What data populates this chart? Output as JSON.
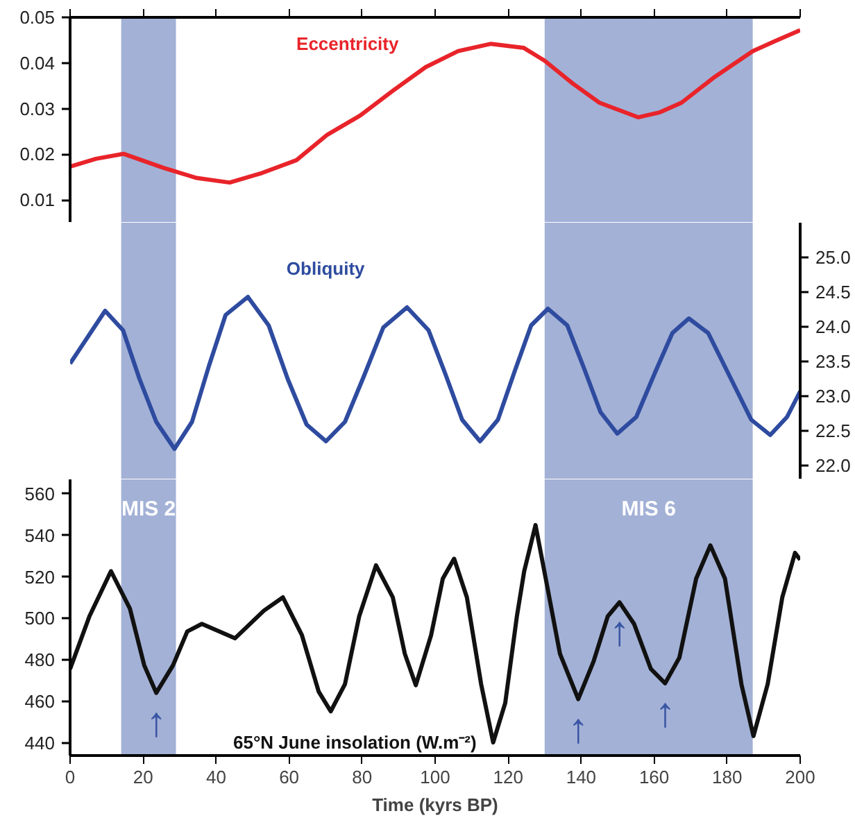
{
  "chart_data": [
    {
      "type": "line",
      "xlim": [
        0,
        200
      ],
      "xticks": [
        0,
        20,
        40,
        60,
        80,
        100,
        120,
        140,
        160,
        180,
        200
      ],
      "ylim": [
        0.005,
        0.05
      ],
      "yticks": [
        0.01,
        0.02,
        0.03,
        0.04,
        0.05
      ],
      "tick_labels": "y",
      "grid": false,
      "series": [
        {
          "name": "Eccentricity",
          "color": "#e8242a",
          "x": [
            0,
            7.1,
            14.6,
            25.7,
            34.7,
            43.7,
            52.6,
            62,
            70.5,
            79.5,
            88.4,
            97.4,
            106.3,
            115.3,
            124.3,
            130,
            137.7,
            145,
            155.6,
            161.6,
            167.5,
            176.5,
            187,
            192.9,
            200
          ],
          "values": [
            0.0173,
            0.019,
            0.0201,
            0.017,
            0.0148,
            0.0138,
            0.0159,
            0.0187,
            0.0243,
            0.0285,
            0.0339,
            0.0391,
            0.0426,
            0.0442,
            0.0433,
            0.0405,
            0.0355,
            0.0313,
            0.0281,
            0.0292,
            0.0313,
            0.0369,
            0.0426,
            0.0447,
            0.0472
          ]
        }
      ],
      "bands": [
        {
          "axis": "x",
          "from": 14,
          "to": 29,
          "color": "#a3b1d6"
        },
        {
          "axis": "x",
          "from": 130,
          "to": 187,
          "color": "#a3b1d6"
        }
      ]
    },
    {
      "type": "line",
      "xlim": [
        0,
        200
      ],
      "ylim": [
        21.8,
        25.5
      ],
      "yticks": [
        {
          "value": 22,
          "label": "22.0"
        },
        22.5,
        {
          "value": 23,
          "label": "23.0"
        },
        23.5,
        {
          "value": 24,
          "label": "24.0"
        },
        24.5,
        {
          "value": 25,
          "label": "25.0"
        }
      ],
      "tick_labels": "y",
      "grid": false,
      "series": [
        {
          "name": "Obliquity",
          "color": "#2e4b9f",
          "x": [
            0,
            9.6,
            14.5,
            19,
            23.6,
            28.6,
            33.4,
            38,
            42.6,
            48.7,
            54.4,
            59.6,
            64.8,
            70.1,
            75.3,
            80.5,
            85.8,
            92.3,
            98.2,
            102.8,
            107.4,
            112.3,
            117.2,
            121.8,
            126.3,
            130.9,
            136.2,
            140.8,
            145.3,
            149.9,
            155.1,
            160.4,
            165,
            169.5,
            174.8,
            180,
            186.6,
            191.8,
            196.4,
            200
          ],
          "values": [
            23.47,
            24.23,
            23.95,
            23.25,
            22.63,
            22.24,
            22.63,
            23.43,
            24.17,
            24.43,
            24.02,
            23.25,
            22.59,
            22.35,
            22.63,
            23.29,
            23.99,
            24.28,
            23.95,
            23.32,
            22.66,
            22.35,
            22.66,
            23.36,
            24.02,
            24.26,
            24.02,
            23.4,
            22.77,
            22.46,
            22.7,
            23.36,
            23.91,
            24.12,
            23.91,
            23.36,
            22.66,
            22.44,
            22.7,
            23.07
          ]
        }
      ],
      "bands": [
        {
          "axis": "x",
          "from": 14,
          "to": 29,
          "color": "#a3b1d6"
        },
        {
          "axis": "x",
          "from": 130,
          "to": 187,
          "color": "#a3b1d6"
        }
      ]
    },
    {
      "type": "line",
      "xlabel": "Time (kyrs BP)",
      "xlim": [
        0,
        200
      ],
      "xticks": [
        0,
        20,
        40,
        60,
        80,
        100,
        120,
        140,
        160,
        180,
        200
      ],
      "ylim": [
        434,
        567
      ],
      "yticks": [
        440,
        460,
        480,
        500,
        520,
        540,
        560
      ],
      "grid": false,
      "series": [
        {
          "name": "65°N June insolation (W.m⁻²)",
          "color": "#111111",
          "x": [
            0,
            5.3,
            11.2,
            16.4,
            20.3,
            23.6,
            28.2,
            32.1,
            36.1,
            45.2,
            53.1,
            58.3,
            63.5,
            68.1,
            71.4,
            75.3,
            79.2,
            83.8,
            88.4,
            91.7,
            94.7,
            98.9,
            102.1,
            105.2,
            108.7,
            112.6,
            115.9,
            119.2,
            122.4,
            124.4,
            127.5,
            130.3,
            134.2,
            139.2,
            143.4,
            147.3,
            150.5,
            154.5,
            159.1,
            163,
            166.9,
            171.5,
            175.4,
            179.4,
            183.9,
            187.2,
            191.1,
            195.1,
            198.6,
            200
          ],
          "values": [
            475.7,
            501.1,
            522.8,
            504.7,
            477.5,
            464.2,
            477.5,
            493.8,
            497.4,
            490.5,
            503.8,
            510.2,
            492,
            464.8,
            455.3,
            468.4,
            501.1,
            525.6,
            510.2,
            483,
            467.9,
            492,
            519.2,
            528.8,
            510.2,
            468.4,
            440.3,
            459.3,
            501.1,
            522.8,
            545,
            519.2,
            483,
            461.2,
            479.3,
            501.1,
            507.8,
            497.4,
            475.7,
            468.8,
            481.1,
            519.2,
            535.2,
            519.2,
            468.4,
            443.4,
            468.4,
            510.2,
            531.6,
            528.3
          ]
        }
      ],
      "bands": [
        {
          "axis": "x",
          "from": 14,
          "to": 29,
          "label": "MIS 2",
          "color": "#a3b1d6"
        },
        {
          "axis": "x",
          "from": 130,
          "to": 187,
          "label": "MIS 6",
          "color": "#a3b1d6"
        }
      ],
      "annotations": [
        {
          "text": "↑",
          "x": 23.6,
          "y": 464.2
        },
        {
          "text": "↑",
          "x": 139.2,
          "y": 461.2
        },
        {
          "text": "↑",
          "x": 150.5,
          "y": 507.8
        },
        {
          "text": "↑",
          "x": 163,
          "y": 468.8
        }
      ]
    }
  ]
}
